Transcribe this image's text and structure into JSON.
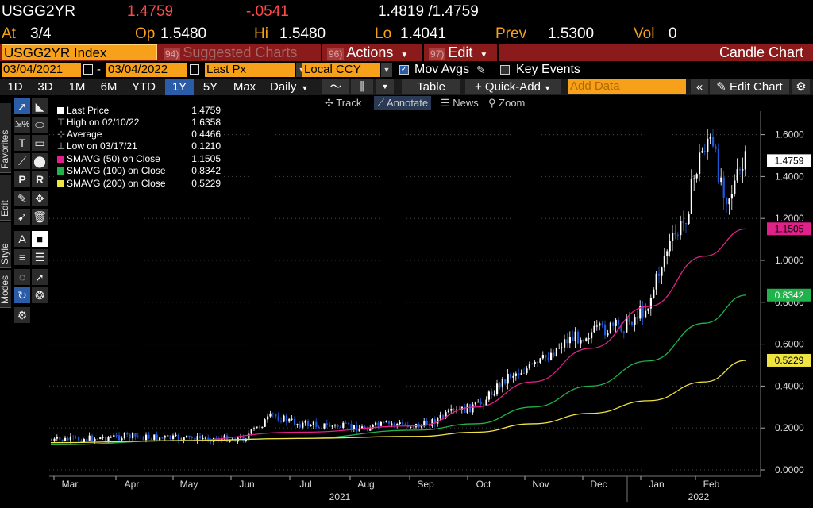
{
  "quote": {
    "ticker": "USGG2YR",
    "last": "1.4759",
    "change": "-.0541",
    "bid_ask": "1.4819 /1.4759",
    "at_label": "At",
    "at_value": "3/4",
    "open_label": "Op",
    "open_value": "1.5480",
    "high_label": "Hi",
    "high_value": "1.5480",
    "low_label": "Lo",
    "low_value": "1.4041",
    "prev_label": "Prev",
    "prev_value": "1.5300",
    "vol_label": "Vol",
    "vol_value": "0"
  },
  "cmdbar": {
    "security": "USGG2YR Index",
    "suggested_num": "94)",
    "suggested_label": "Suggested Charts",
    "actions_num": "96)",
    "actions_label": "Actions",
    "edit_num": "97)",
    "edit_label": "Edit",
    "chart_title": "Candle Chart"
  },
  "daterow": {
    "start_date": "03/04/2021",
    "date_sep": "-",
    "end_date": "03/04/2022",
    "field": "Last Px",
    "currency": "Local CCY",
    "mov_avgs": "Mov Avgs",
    "key_events": "Key Events"
  },
  "rangerow": {
    "ranges": [
      "1D",
      "3D",
      "1M",
      "6M",
      "YTD",
      "1Y",
      "5Y",
      "Max"
    ],
    "active_range": "1Y",
    "period": "Daily",
    "table_label": "Table",
    "quick_add": "Quick-Add",
    "add_data_placeholder": "Add Data",
    "edit_chart": "Edit Chart"
  },
  "tools": {
    "track": "Track",
    "annotate": "Annotate",
    "news": "News",
    "zoom": "Zoom"
  },
  "sidetabs": [
    "Favorites",
    "Edit",
    "Style",
    "Modes"
  ],
  "legend": [
    {
      "icon": "square",
      "label": "Last Price",
      "value": "1.4759",
      "color": "#ffffff"
    },
    {
      "icon": "high",
      "label": "High on 02/10/22",
      "value": "1.6358",
      "color": "#aaaaaa"
    },
    {
      "icon": "avg",
      "label": "Average",
      "value": "0.4466",
      "color": "#aaaaaa"
    },
    {
      "icon": "low",
      "label": "Low on 03/17/21",
      "value": "0.1210",
      "color": "#aaaaaa"
    },
    {
      "icon": "square",
      "label": "SMAVG (50)  on Close",
      "value": "1.1505",
      "color": "#e0218a"
    },
    {
      "icon": "square",
      "label": "SMAVG (100)  on Close",
      "value": "0.8342",
      "color": "#22b24c"
    },
    {
      "icon": "square",
      "label": "SMAVG (200)  on Close",
      "value": "0.5229",
      "color": "#f0e442"
    }
  ],
  "chart_data": {
    "type": "candlestick",
    "x_axis": {
      "months": [
        "Mar",
        "Apr",
        "May",
        "Jun",
        "Jul",
        "Aug",
        "Sep",
        "Oct",
        "Nov",
        "Dec",
        "Jan",
        "Feb"
      ],
      "years": [
        "2021",
        "2022"
      ]
    },
    "y_axis": {
      "ticks": [
        "0.0000",
        "0.2000",
        "0.4000",
        "0.6000",
        "0.8000",
        "1.0000",
        "1.2000",
        "1.4000",
        "1.6000"
      ],
      "range": [
        0,
        1.6
      ]
    },
    "price_tag": {
      "value": "1.4759",
      "bg": "#ffffff",
      "fg": "#000000"
    },
    "series": [
      {
        "name": "Last Price",
        "color": "#ffffff",
        "down_color": "#1e5ad8",
        "points": [
          {
            "x": "Mar",
            "y": 0.14
          },
          {
            "x": "Apr",
            "y": 0.16
          },
          {
            "x": "May",
            "y": 0.15
          },
          {
            "x": "Jun",
            "y": 0.15
          },
          {
            "x": "Jun",
            "y": 0.26
          },
          {
            "x": "Jul",
            "y": 0.22
          },
          {
            "x": "Aug",
            "y": 0.2
          },
          {
            "x": "Aug",
            "y": 0.22
          },
          {
            "x": "Sep",
            "y": 0.21
          },
          {
            "x": "Sep",
            "y": 0.27
          },
          {
            "x": "Oct",
            "y": 0.31
          },
          {
            "x": "Oct",
            "y": 0.45
          },
          {
            "x": "Nov",
            "y": 0.5
          },
          {
            "x": "Nov",
            "y": 0.62
          },
          {
            "x": "Dec",
            "y": 0.66
          },
          {
            "x": "Dec",
            "y": 0.69
          },
          {
            "x": "Jan",
            "y": 0.78
          },
          {
            "x": "Jan",
            "y": 1.04
          },
          {
            "x": "Jan",
            "y": 1.18
          },
          {
            "x": "Feb",
            "y": 1.47
          },
          {
            "x": "Feb",
            "y": 1.59
          },
          {
            "x": "Feb",
            "y": 1.44
          },
          {
            "x": "Feb",
            "y": 1.3
          },
          {
            "x": "Feb",
            "y": 1.4759
          }
        ]
      },
      {
        "name": "SMAVG (50)",
        "color": "#e0218a",
        "value": "1.1505",
        "points": [
          {
            "x": "Mar",
            "y": 0.12
          },
          {
            "x": "May",
            "y": 0.14
          },
          {
            "x": "Jul",
            "y": 0.18
          },
          {
            "x": "Sep",
            "y": 0.21
          },
          {
            "x": "Oct",
            "y": 0.3
          },
          {
            "x": "Nov",
            "y": 0.42
          },
          {
            "x": "Dec",
            "y": 0.58
          },
          {
            "x": "Jan",
            "y": 0.78
          },
          {
            "x": "Feb",
            "y": 1.02
          },
          {
            "x": "Feb",
            "y": 1.1505
          }
        ]
      },
      {
        "name": "SMAVG (100)",
        "color": "#22b24c",
        "value": "0.8342",
        "points": [
          {
            "x": "Mar",
            "y": 0.12
          },
          {
            "x": "May",
            "y": 0.14
          },
          {
            "x": "Jul",
            "y": 0.15
          },
          {
            "x": "Sep",
            "y": 0.19
          },
          {
            "x": "Oct",
            "y": 0.22
          },
          {
            "x": "Nov",
            "y": 0.3
          },
          {
            "x": "Dec",
            "y": 0.4
          },
          {
            "x": "Jan",
            "y": 0.52
          },
          {
            "x": "Feb",
            "y": 0.7
          },
          {
            "x": "Feb",
            "y": 0.8342
          }
        ]
      },
      {
        "name": "SMAVG (200)",
        "color": "#f0e442",
        "value": "0.5229",
        "points": [
          {
            "x": "Mar",
            "y": 0.13
          },
          {
            "x": "May",
            "y": 0.14
          },
          {
            "x": "Jul",
            "y": 0.15
          },
          {
            "x": "Sep",
            "y": 0.16
          },
          {
            "x": "Oct",
            "y": 0.18
          },
          {
            "x": "Nov",
            "y": 0.22
          },
          {
            "x": "Dec",
            "y": 0.27
          },
          {
            "x": "Jan",
            "y": 0.33
          },
          {
            "x": "Feb",
            "y": 0.42
          },
          {
            "x": "Feb",
            "y": 0.5229
          }
        ]
      }
    ]
  }
}
